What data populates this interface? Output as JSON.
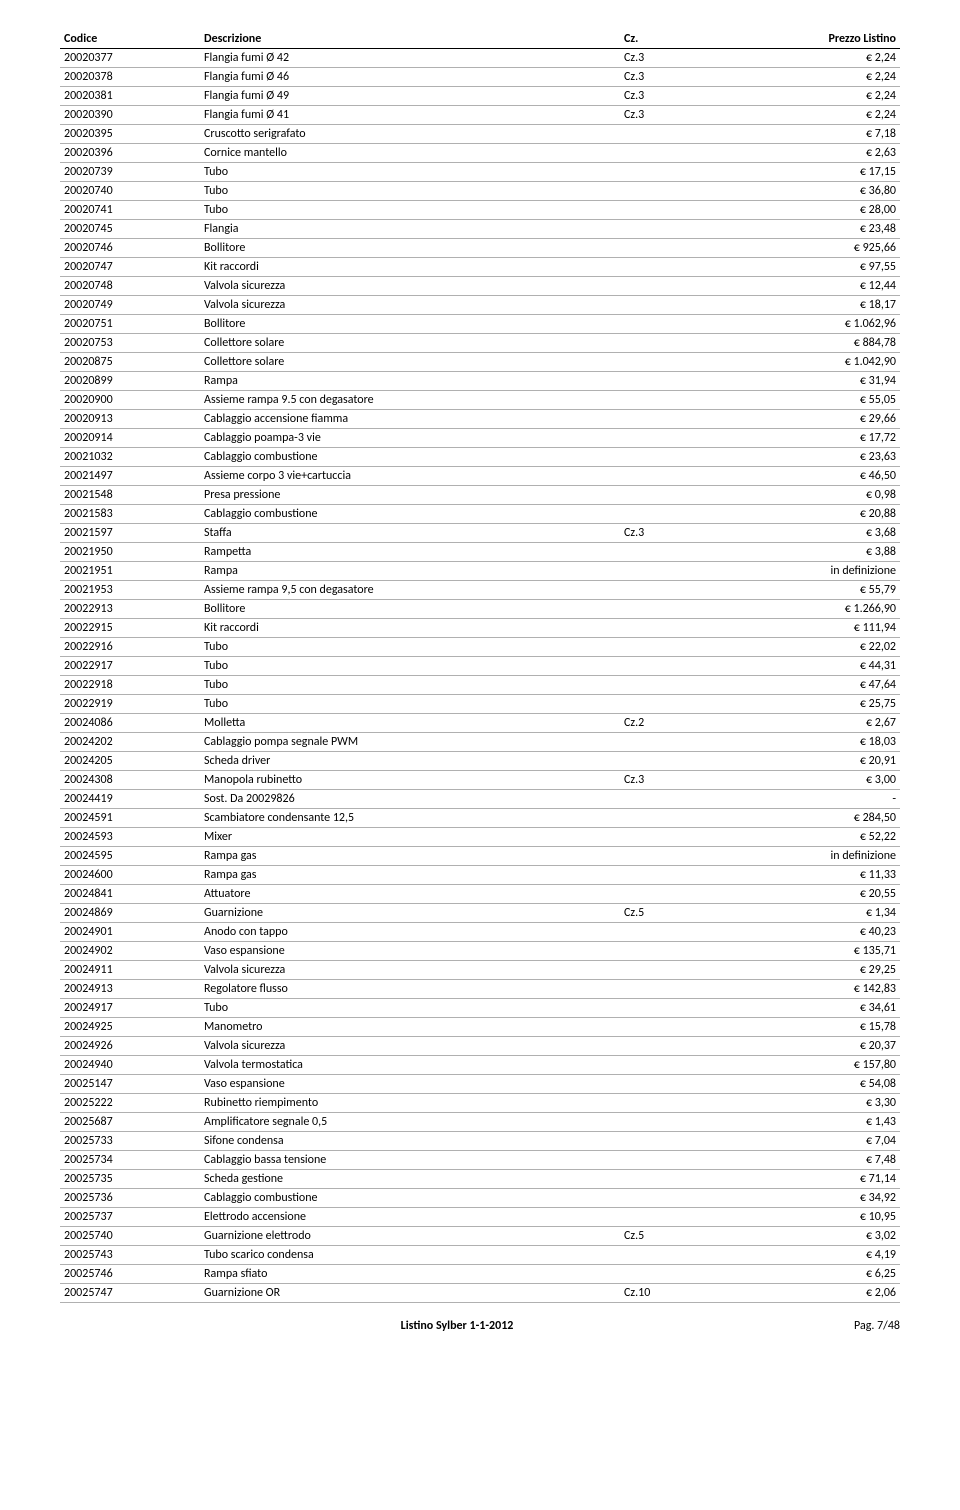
{
  "columns": {
    "code": "Codice",
    "desc": "Descrizione",
    "cz": "Cz.",
    "price": "Prezzo Listino"
  },
  "rows": [
    {
      "code": "20020377",
      "desc": "Flangia fumi Ø  42",
      "cz": "Cz.3",
      "price": "€ 2,24"
    },
    {
      "code": "20020378",
      "desc": "Flangia fumi Ø  46",
      "cz": "Cz.3",
      "price": "€ 2,24"
    },
    {
      "code": "20020381",
      "desc": "Flangia fumi Ø  49",
      "cz": "Cz.3",
      "price": "€ 2,24"
    },
    {
      "code": "20020390",
      "desc": "Flangia fumi Ø  41",
      "cz": "Cz.3",
      "price": "€ 2,24"
    },
    {
      "code": "20020395",
      "desc": "Cruscotto serigrafato",
      "cz": "",
      "price": "€ 7,18"
    },
    {
      "code": "20020396",
      "desc": "Cornice mantello",
      "cz": "",
      "price": "€ 2,63"
    },
    {
      "code": "20020739",
      "desc": "Tubo",
      "cz": "",
      "price": "€ 17,15"
    },
    {
      "code": "20020740",
      "desc": "Tubo",
      "cz": "",
      "price": "€ 36,80"
    },
    {
      "code": "20020741",
      "desc": "Tubo",
      "cz": "",
      "price": "€ 28,00"
    },
    {
      "code": "20020745",
      "desc": "Flangia",
      "cz": "",
      "price": "€ 23,48"
    },
    {
      "code": "20020746",
      "desc": "Bollitore",
      "cz": "",
      "price": "€ 925,66"
    },
    {
      "code": "20020747",
      "desc": "Kit raccordi",
      "cz": "",
      "price": "€ 97,55"
    },
    {
      "code": "20020748",
      "desc": "Valvola sicurezza",
      "cz": "",
      "price": "€ 12,44"
    },
    {
      "code": "20020749",
      "desc": "Valvola sicurezza",
      "cz": "",
      "price": "€ 18,17"
    },
    {
      "code": "20020751",
      "desc": "Bollitore",
      "cz": "",
      "price": "€ 1.062,96"
    },
    {
      "code": "20020753",
      "desc": "Collettore solare",
      "cz": "",
      "price": "€ 884,78"
    },
    {
      "code": "20020875",
      "desc": "Collettore solare",
      "cz": "",
      "price": "€ 1.042,90"
    },
    {
      "code": "20020899",
      "desc": "Rampa",
      "cz": "",
      "price": "€ 31,94"
    },
    {
      "code": "20020900",
      "desc": "Assieme rampa 9.5 con degasatore",
      "cz": "",
      "price": "€ 55,05"
    },
    {
      "code": "20020913",
      "desc": "Cablaggio accensione fiamma",
      "cz": "",
      "price": "€ 29,66"
    },
    {
      "code": "20020914",
      "desc": "Cablaggio poampa-3 vie",
      "cz": "",
      "price": "€ 17,72"
    },
    {
      "code": "20021032",
      "desc": "Cablaggio combustione",
      "cz": "",
      "price": "€ 23,63"
    },
    {
      "code": "20021497",
      "desc": "Assieme corpo 3 vie+cartuccia",
      "cz": "",
      "price": "€ 46,50"
    },
    {
      "code": "20021548",
      "desc": "Presa pressione",
      "cz": "",
      "price": "€ 0,98"
    },
    {
      "code": "20021583",
      "desc": "Cablaggio combustione",
      "cz": "",
      "price": "€ 20,88"
    },
    {
      "code": "20021597",
      "desc": "Staffa",
      "cz": "Cz.3",
      "price": "€ 3,68"
    },
    {
      "code": "20021950",
      "desc": "Rampetta",
      "cz": "",
      "price": "€ 3,88"
    },
    {
      "code": "20021951",
      "desc": "Rampa",
      "cz": "",
      "price": "in definizione"
    },
    {
      "code": "20021953",
      "desc": "Assieme rampa 9,5 con degasatore",
      "cz": "",
      "price": "€ 55,79"
    },
    {
      "code": "20022913",
      "desc": "Bollitore",
      "cz": "",
      "price": "€ 1.266,90"
    },
    {
      "code": "20022915",
      "desc": "Kit raccordi",
      "cz": "",
      "price": "€ 111,94"
    },
    {
      "code": "20022916",
      "desc": "Tubo",
      "cz": "",
      "price": "€ 22,02"
    },
    {
      "code": "20022917",
      "desc": "Tubo",
      "cz": "",
      "price": "€ 44,31"
    },
    {
      "code": "20022918",
      "desc": "Tubo",
      "cz": "",
      "price": "€ 47,64"
    },
    {
      "code": "20022919",
      "desc": "Tubo",
      "cz": "",
      "price": "€ 25,75"
    },
    {
      "code": "20024086",
      "desc": "Molletta",
      "cz": "Cz.2",
      "price": "€ 2,67"
    },
    {
      "code": "20024202",
      "desc": "Cablaggio pompa segnale PWM",
      "cz": "",
      "price": "€ 18,03"
    },
    {
      "code": "20024205",
      "desc": "Scheda driver",
      "cz": "",
      "price": "€ 20,91"
    },
    {
      "code": "20024308",
      "desc": "Manopola rubinetto",
      "cz": "Cz.3",
      "price": "€ 3,00"
    },
    {
      "code": "20024419",
      "desc": "Sost. Da 20029826",
      "cz": "",
      "price": "-"
    },
    {
      "code": "20024591",
      "desc": "Scambiatore condensante 12,5",
      "cz": "",
      "price": "€ 284,50"
    },
    {
      "code": "20024593",
      "desc": "Mixer",
      "cz": "",
      "price": "€ 52,22"
    },
    {
      "code": "20024595",
      "desc": "Rampa gas",
      "cz": "",
      "price": "in definizione"
    },
    {
      "code": "20024600",
      "desc": "Rampa gas",
      "cz": "",
      "price": "€ 11,33"
    },
    {
      "code": "20024841",
      "desc": "Attuatore",
      "cz": "",
      "price": "€ 20,55"
    },
    {
      "code": "20024869",
      "desc": "Guarnizione",
      "cz": "Cz.5",
      "price": "€ 1,34"
    },
    {
      "code": "20024901",
      "desc": "Anodo con tappo",
      "cz": "",
      "price": "€ 40,23"
    },
    {
      "code": "20024902",
      "desc": "Vaso espansione",
      "cz": "",
      "price": "€ 135,71"
    },
    {
      "code": "20024911",
      "desc": "Valvola sicurezza",
      "cz": "",
      "price": "€ 29,25"
    },
    {
      "code": "20024913",
      "desc": "Regolatore flusso",
      "cz": "",
      "price": "€ 142,83"
    },
    {
      "code": "20024917",
      "desc": "Tubo",
      "cz": "",
      "price": "€ 34,61"
    },
    {
      "code": "20024925",
      "desc": "Manometro",
      "cz": "",
      "price": "€ 15,78"
    },
    {
      "code": "20024926",
      "desc": "Valvola sicurezza",
      "cz": "",
      "price": "€ 20,37"
    },
    {
      "code": "20024940",
      "desc": "Valvola termostatica",
      "cz": "",
      "price": "€ 157,80"
    },
    {
      "code": "20025147",
      "desc": "Vaso espansione",
      "cz": "",
      "price": "€ 54,08"
    },
    {
      "code": "20025222",
      "desc": "Rubinetto riempimento",
      "cz": "",
      "price": "€ 3,30"
    },
    {
      "code": "20025687",
      "desc": "Amplificatore segnale 0,5",
      "cz": "",
      "price": "€ 1,43"
    },
    {
      "code": "20025733",
      "desc": "Sifone condensa",
      "cz": "",
      "price": "€ 7,04"
    },
    {
      "code": "20025734",
      "desc": "Cablaggio bassa tensione",
      "cz": "",
      "price": "€ 7,48"
    },
    {
      "code": "20025735",
      "desc": "Scheda gestione",
      "cz": "",
      "price": "€ 71,14"
    },
    {
      "code": "20025736",
      "desc": "Cablaggio combustione",
      "cz": "",
      "price": "€ 34,92"
    },
    {
      "code": "20025737",
      "desc": "Elettrodo accensione",
      "cz": "",
      "price": "€ 10,95"
    },
    {
      "code": "20025740",
      "desc": "Guarnizione elettrodo",
      "cz": "Cz.5",
      "price": "€ 3,02"
    },
    {
      "code": "20025743",
      "desc": "Tubo scarico condensa",
      "cz": "",
      "price": "€ 4,19"
    },
    {
      "code": "20025746",
      "desc": "Rampa sfiato",
      "cz": "",
      "price": "€ 6,25"
    },
    {
      "code": "20025747",
      "desc": "Guarnizione OR",
      "cz": "Cz.10",
      "price": "€ 2,06"
    }
  ],
  "footer": {
    "title": "Listino Sylber 1-1-2012",
    "page": "Pag. 7/48"
  }
}
